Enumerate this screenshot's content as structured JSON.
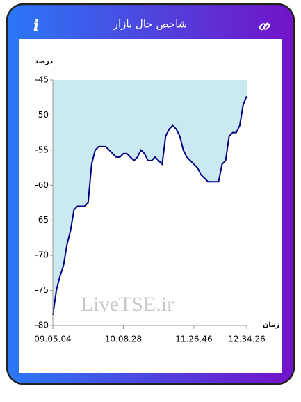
{
  "header": {
    "title": "شاخص حال بازار"
  },
  "chart_data": {
    "type": "line",
    "ylabel": "درصد",
    "xlabel": "زمان",
    "watermark": "LiveTSE.ir",
    "x": [
      0,
      2,
      4,
      6,
      8,
      10,
      12,
      14,
      16,
      18,
      20,
      22,
      24,
      26,
      28,
      30,
      32,
      34,
      36,
      38,
      40,
      42,
      44,
      46,
      48,
      50,
      52,
      54,
      56,
      58,
      60,
      62,
      64,
      66,
      68,
      70,
      72,
      74,
      76,
      78,
      80,
      82,
      84,
      86,
      88,
      90,
      92,
      94,
      96,
      98,
      100,
      102,
      104,
      106,
      108,
      110
    ],
    "series": [
      {
        "color": "#000080",
        "fill_color": "#cbe9f1",
        "fill": "above",
        "values": [
          -78.5,
          -75,
          -73,
          -71.5,
          -68.5,
          -66.5,
          -63.5,
          -63,
          -63,
          -63,
          -62.5,
          -57,
          -55,
          -54.5,
          -54.5,
          -54.5,
          -55,
          -55.5,
          -56,
          -56,
          -55.5,
          -55.5,
          -56,
          -56.5,
          -56,
          -55,
          -55.5,
          -56.5,
          -56.5,
          -56,
          -56.5,
          -57,
          -53,
          -52,
          -51.5,
          -52,
          -53,
          -55,
          -56,
          -56.5,
          -57,
          -57.5,
          -58.5,
          -59,
          -59.5,
          -59.5,
          -59.5,
          -59.5,
          -57,
          -56.5,
          -53,
          -52.5,
          -52.5,
          -51.5,
          -48.5,
          -47.3
        ]
      }
    ],
    "xlim": [
      0,
      110
    ],
    "xticks": [
      {
        "value": 0,
        "label": "09.05.04"
      },
      {
        "value": 40,
        "label": "10.08.28"
      },
      {
        "value": 80,
        "label": "11.26.46"
      },
      {
        "value": 110,
        "label": "12.34.26"
      }
    ],
    "ylim": [
      -80,
      -45
    ],
    "yticks": [
      -45,
      -50,
      -55,
      -60,
      -65,
      -70,
      -75,
      -80
    ]
  }
}
